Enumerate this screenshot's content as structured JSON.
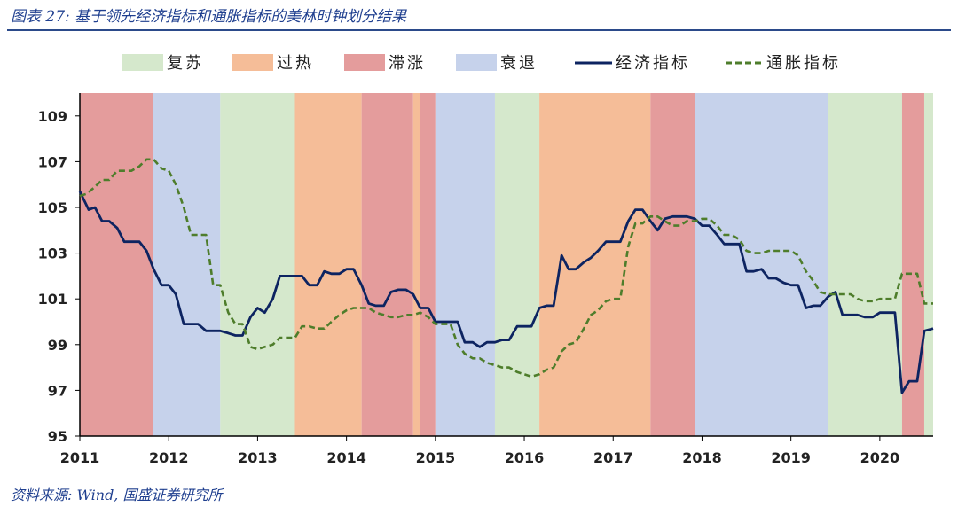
{
  "figure": {
    "title": "图表 27:  基于领先经济指标和通胀指标的美林时钟划分结果",
    "source": "资料来源:  Wind, 国盛证券研究所"
  },
  "colors": {
    "复苏": "#d5e8cc",
    "过热": "#f5bd98",
    "滞涨": "#e49c9c",
    "衰退": "#c6d2eb",
    "经济指标": "#0d2461",
    "通胀指标": "#4e7d2b"
  },
  "chart_data": {
    "type": "line",
    "title": "",
    "xlabel": "",
    "ylabel": "",
    "xlim": [
      2011.0,
      2020.6
    ],
    "ylim": [
      95,
      110
    ],
    "x_ticks": [
      "2011",
      "2012",
      "2013",
      "2014",
      "2015",
      "2016",
      "2017",
      "2018",
      "2019",
      "2020"
    ],
    "y_ticks": [
      "95",
      "97",
      "99",
      "101",
      "103",
      "105",
      "107",
      "109"
    ],
    "grid": false,
    "legend_position": "top",
    "legend": [
      {
        "label": "复苏",
        "kind": "patch"
      },
      {
        "label": "过热",
        "kind": "patch"
      },
      {
        "label": "滞涨",
        "kind": "patch"
      },
      {
        "label": "衰退",
        "kind": "patch"
      },
      {
        "label": "经济指标",
        "kind": "solid-line"
      },
      {
        "label": "通胀指标",
        "kind": "dashed-line"
      }
    ],
    "phases": [
      {
        "phase": "滞涨",
        "start": 2011.0,
        "end": 2011.82
      },
      {
        "phase": "衰退",
        "start": 2011.82,
        "end": 2012.58
      },
      {
        "phase": "复苏",
        "start": 2012.58,
        "end": 2013.42
      },
      {
        "phase": "过热",
        "start": 2013.42,
        "end": 2014.17
      },
      {
        "phase": "滞涨",
        "start": 2014.17,
        "end": 2014.75
      },
      {
        "phase": "过热",
        "start": 2014.75,
        "end": 2014.83
      },
      {
        "phase": "滞涨",
        "start": 2014.83,
        "end": 2015.0
      },
      {
        "phase": "衰退",
        "start": 2015.0,
        "end": 2015.67
      },
      {
        "phase": "复苏",
        "start": 2015.67,
        "end": 2016.17
      },
      {
        "phase": "过热",
        "start": 2016.17,
        "end": 2017.42
      },
      {
        "phase": "滞涨",
        "start": 2017.42,
        "end": 2017.92
      },
      {
        "phase": "衰退",
        "start": 2017.92,
        "end": 2019.42
      },
      {
        "phase": "复苏",
        "start": 2019.42,
        "end": 2020.25
      },
      {
        "phase": "滞涨",
        "start": 2020.25,
        "end": 2020.5
      },
      {
        "phase": "复苏",
        "start": 2020.5,
        "end": 2020.6
      }
    ],
    "series": [
      {
        "name": "经济指标",
        "style": "solid",
        "points": [
          [
            2011.0,
            105.7
          ],
          [
            2011.05,
            105.3
          ],
          [
            2011.1,
            104.9
          ],
          [
            2011.17,
            105.0
          ],
          [
            2011.25,
            104.4
          ],
          [
            2011.33,
            104.4
          ],
          [
            2011.42,
            104.1
          ],
          [
            2011.5,
            103.5
          ],
          [
            2011.58,
            103.5
          ],
          [
            2011.67,
            103.5
          ],
          [
            2011.75,
            103.1
          ],
          [
            2011.83,
            102.3
          ],
          [
            2011.92,
            101.6
          ],
          [
            2012.0,
            101.6
          ],
          [
            2012.08,
            101.2
          ],
          [
            2012.17,
            99.9
          ],
          [
            2012.25,
            99.9
          ],
          [
            2012.33,
            99.9
          ],
          [
            2012.42,
            99.6
          ],
          [
            2012.5,
            99.6
          ],
          [
            2012.58,
            99.6
          ],
          [
            2012.67,
            99.5
          ],
          [
            2012.75,
            99.4
          ],
          [
            2012.83,
            99.4
          ],
          [
            2012.92,
            100.2
          ],
          [
            2013.0,
            100.6
          ],
          [
            2013.08,
            100.4
          ],
          [
            2013.17,
            101.0
          ],
          [
            2013.25,
            102.0
          ],
          [
            2013.33,
            102.0
          ],
          [
            2013.42,
            102.0
          ],
          [
            2013.5,
            102.0
          ],
          [
            2013.58,
            101.6
          ],
          [
            2013.67,
            101.6
          ],
          [
            2013.75,
            102.2
          ],
          [
            2013.83,
            102.1
          ],
          [
            2013.92,
            102.1
          ],
          [
            2014.0,
            102.3
          ],
          [
            2014.08,
            102.3
          ],
          [
            2014.17,
            101.6
          ],
          [
            2014.25,
            100.8
          ],
          [
            2014.33,
            100.7
          ],
          [
            2014.42,
            100.7
          ],
          [
            2014.5,
            101.3
          ],
          [
            2014.58,
            101.4
          ],
          [
            2014.67,
            101.4
          ],
          [
            2014.75,
            101.2
          ],
          [
            2014.83,
            100.6
          ],
          [
            2014.92,
            100.6
          ],
          [
            2015.0,
            100.0
          ],
          [
            2015.08,
            100.0
          ],
          [
            2015.17,
            100.0
          ],
          [
            2015.25,
            100.0
          ],
          [
            2015.33,
            99.1
          ],
          [
            2015.42,
            99.1
          ],
          [
            2015.5,
            98.9
          ],
          [
            2015.58,
            99.1
          ],
          [
            2015.67,
            99.1
          ],
          [
            2015.75,
            99.2
          ],
          [
            2015.83,
            99.2
          ],
          [
            2015.92,
            99.8
          ],
          [
            2016.0,
            99.8
          ],
          [
            2016.08,
            99.8
          ],
          [
            2016.17,
            100.6
          ],
          [
            2016.25,
            100.7
          ],
          [
            2016.33,
            100.7
          ],
          [
            2016.42,
            102.9
          ],
          [
            2016.5,
            102.3
          ],
          [
            2016.58,
            102.3
          ],
          [
            2016.67,
            102.6
          ],
          [
            2016.75,
            102.8
          ],
          [
            2016.83,
            103.1
          ],
          [
            2016.92,
            103.5
          ],
          [
            2017.0,
            103.5
          ],
          [
            2017.08,
            103.5
          ],
          [
            2017.17,
            104.4
          ],
          [
            2017.25,
            104.9
          ],
          [
            2017.33,
            104.9
          ],
          [
            2017.42,
            104.4
          ],
          [
            2017.5,
            104.0
          ],
          [
            2017.58,
            104.5
          ],
          [
            2017.67,
            104.6
          ],
          [
            2017.75,
            104.6
          ],
          [
            2017.83,
            104.6
          ],
          [
            2017.92,
            104.5
          ],
          [
            2018.0,
            104.2
          ],
          [
            2018.08,
            104.2
          ],
          [
            2018.17,
            103.8
          ],
          [
            2018.25,
            103.4
          ],
          [
            2018.33,
            103.4
          ],
          [
            2018.42,
            103.4
          ],
          [
            2018.5,
            102.2
          ],
          [
            2018.58,
            102.2
          ],
          [
            2018.67,
            102.3
          ],
          [
            2018.75,
            101.9
          ],
          [
            2018.83,
            101.9
          ],
          [
            2018.92,
            101.7
          ],
          [
            2019.0,
            101.6
          ],
          [
            2019.08,
            101.6
          ],
          [
            2019.17,
            100.6
          ],
          [
            2019.25,
            100.7
          ],
          [
            2019.33,
            100.7
          ],
          [
            2019.42,
            101.1
          ],
          [
            2019.5,
            101.3
          ],
          [
            2019.58,
            100.3
          ],
          [
            2019.67,
            100.3
          ],
          [
            2019.75,
            100.3
          ],
          [
            2019.83,
            100.2
          ],
          [
            2019.92,
            100.2
          ],
          [
            2020.0,
            100.4
          ],
          [
            2020.08,
            100.4
          ],
          [
            2020.17,
            100.4
          ],
          [
            2020.25,
            96.9
          ],
          [
            2020.33,
            97.4
          ],
          [
            2020.42,
            97.4
          ],
          [
            2020.5,
            99.6
          ],
          [
            2020.6,
            99.7
          ]
        ]
      },
      {
        "name": "通胀指标",
        "style": "dashed",
        "points": [
          [
            2011.0,
            105.5
          ],
          [
            2011.08,
            105.6
          ],
          [
            2011.17,
            105.9
          ],
          [
            2011.25,
            106.2
          ],
          [
            2011.33,
            106.2
          ],
          [
            2011.42,
            106.6
          ],
          [
            2011.5,
            106.6
          ],
          [
            2011.58,
            106.6
          ],
          [
            2011.67,
            106.8
          ],
          [
            2011.75,
            107.1
          ],
          [
            2011.83,
            107.1
          ],
          [
            2011.92,
            106.7
          ],
          [
            2012.0,
            106.6
          ],
          [
            2012.08,
            106.0
          ],
          [
            2012.17,
            105.0
          ],
          [
            2012.25,
            103.8
          ],
          [
            2012.33,
            103.8
          ],
          [
            2012.42,
            103.8
          ],
          [
            2012.5,
            101.6
          ],
          [
            2012.58,
            101.6
          ],
          [
            2012.67,
            100.4
          ],
          [
            2012.75,
            99.9
          ],
          [
            2012.83,
            99.9
          ],
          [
            2012.92,
            98.9
          ],
          [
            2013.0,
            98.8
          ],
          [
            2013.08,
            98.9
          ],
          [
            2013.17,
            99.0
          ],
          [
            2013.25,
            99.3
          ],
          [
            2013.33,
            99.3
          ],
          [
            2013.42,
            99.3
          ],
          [
            2013.5,
            99.8
          ],
          [
            2013.58,
            99.8
          ],
          [
            2013.67,
            99.7
          ],
          [
            2013.75,
            99.7
          ],
          [
            2013.83,
            100.0
          ],
          [
            2013.92,
            100.3
          ],
          [
            2014.0,
            100.5
          ],
          [
            2014.08,
            100.6
          ],
          [
            2014.17,
            100.6
          ],
          [
            2014.25,
            100.6
          ],
          [
            2014.33,
            100.4
          ],
          [
            2014.42,
            100.3
          ],
          [
            2014.5,
            100.2
          ],
          [
            2014.58,
            100.2
          ],
          [
            2014.67,
            100.3
          ],
          [
            2014.75,
            100.3
          ],
          [
            2014.83,
            100.4
          ],
          [
            2014.92,
            100.2
          ],
          [
            2015.0,
            99.9
          ],
          [
            2015.08,
            99.9
          ],
          [
            2015.17,
            99.9
          ],
          [
            2015.25,
            99.0
          ],
          [
            2015.33,
            98.6
          ],
          [
            2015.42,
            98.4
          ],
          [
            2015.5,
            98.4
          ],
          [
            2015.58,
            98.2
          ],
          [
            2015.67,
            98.1
          ],
          [
            2015.75,
            98.0
          ],
          [
            2015.83,
            98.0
          ],
          [
            2015.92,
            97.8
          ],
          [
            2016.0,
            97.7
          ],
          [
            2016.08,
            97.6
          ],
          [
            2016.17,
            97.7
          ],
          [
            2016.25,
            97.9
          ],
          [
            2016.33,
            98.0
          ],
          [
            2016.42,
            98.7
          ],
          [
            2016.5,
            99.0
          ],
          [
            2016.58,
            99.1
          ],
          [
            2016.67,
            99.7
          ],
          [
            2016.75,
            100.3
          ],
          [
            2016.83,
            100.5
          ],
          [
            2016.92,
            100.9
          ],
          [
            2017.0,
            101.0
          ],
          [
            2017.08,
            101.0
          ],
          [
            2017.17,
            103.3
          ],
          [
            2017.25,
            104.3
          ],
          [
            2017.33,
            104.3
          ],
          [
            2017.42,
            104.6
          ],
          [
            2017.5,
            104.6
          ],
          [
            2017.58,
            104.4
          ],
          [
            2017.67,
            104.2
          ],
          [
            2017.75,
            104.2
          ],
          [
            2017.83,
            104.4
          ],
          [
            2017.92,
            104.4
          ],
          [
            2018.0,
            104.5
          ],
          [
            2018.08,
            104.5
          ],
          [
            2018.17,
            104.2
          ],
          [
            2018.25,
            103.8
          ],
          [
            2018.33,
            103.8
          ],
          [
            2018.42,
            103.6
          ],
          [
            2018.5,
            103.1
          ],
          [
            2018.58,
            103.0
          ],
          [
            2018.67,
            103.0
          ],
          [
            2018.75,
            103.1
          ],
          [
            2018.83,
            103.1
          ],
          [
            2018.92,
            103.1
          ],
          [
            2019.0,
            103.1
          ],
          [
            2019.08,
            102.9
          ],
          [
            2019.17,
            102.2
          ],
          [
            2019.25,
            101.8
          ],
          [
            2019.33,
            101.3
          ],
          [
            2019.42,
            101.2
          ],
          [
            2019.5,
            101.2
          ],
          [
            2019.58,
            101.2
          ],
          [
            2019.67,
            101.2
          ],
          [
            2019.75,
            101.0
          ],
          [
            2019.83,
            100.9
          ],
          [
            2019.92,
            100.9
          ],
          [
            2020.0,
            101.0
          ],
          [
            2020.08,
            101.0
          ],
          [
            2020.17,
            101.0
          ],
          [
            2020.25,
            102.1
          ],
          [
            2020.33,
            102.1
          ],
          [
            2020.42,
            102.1
          ],
          [
            2020.5,
            100.8
          ],
          [
            2020.6,
            100.8
          ]
        ]
      }
    ]
  }
}
